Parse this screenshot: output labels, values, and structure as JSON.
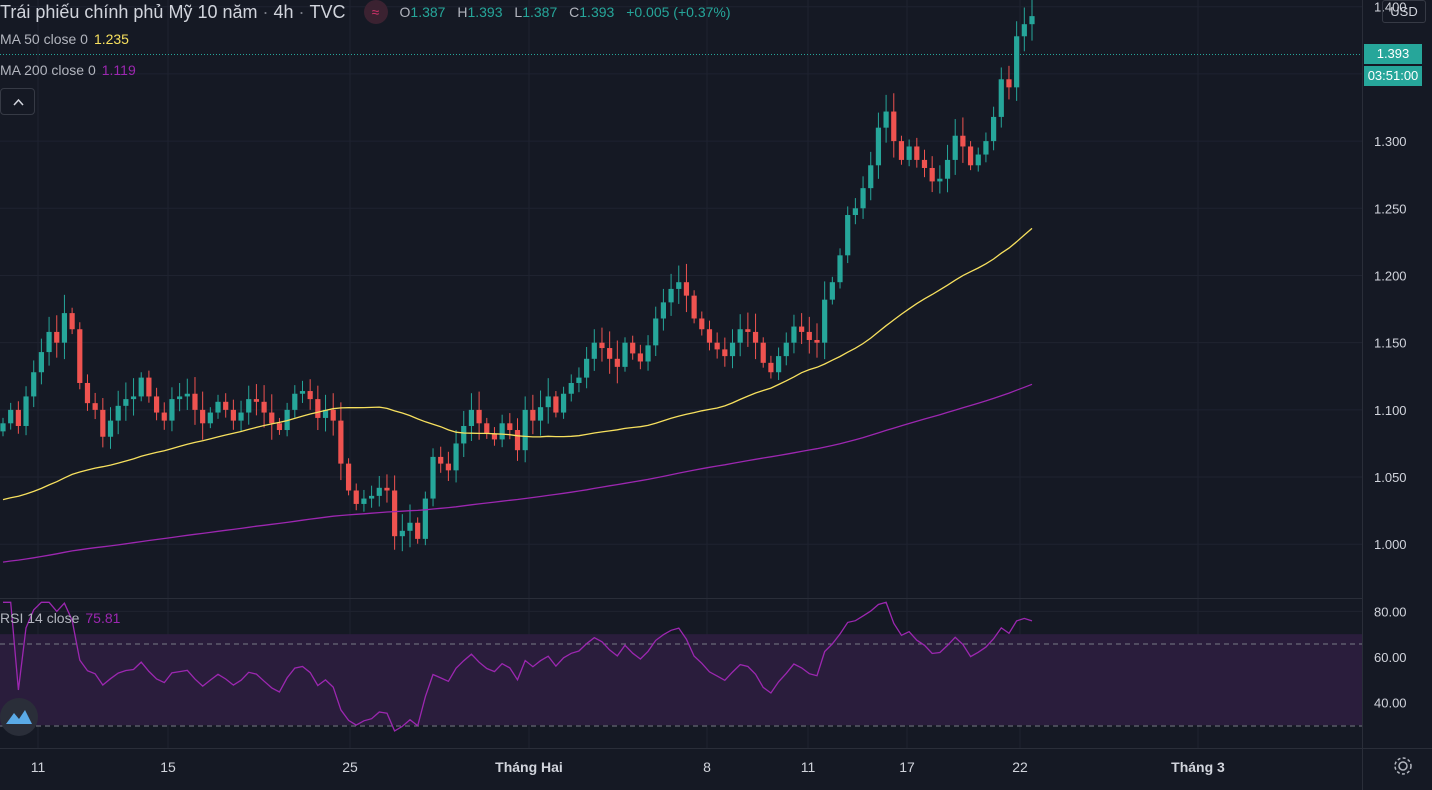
{
  "header": {
    "title": "Trái phiếu chính phủ Mỹ 10 năm",
    "interval": "4h",
    "source": "TVC",
    "source_icon": "wave-icon",
    "ohlc": {
      "o_key": "O",
      "o": "1.387",
      "h_key": "H",
      "h": "1.393",
      "l_key": "L",
      "l": "1.387",
      "c_key": "C",
      "c": "1.393",
      "change": "+0.005 (+0.37%)"
    },
    "currency_button": "USD"
  },
  "indicators": {
    "ma50": {
      "label": "MA 50 close 0",
      "value": "1.235",
      "color": "#f7e05e"
    },
    "ma200": {
      "label": "MA 200 close 0",
      "value": "1.119",
      "color": "#9c27b0"
    },
    "rsi": {
      "label": "RSI 14 close",
      "value": "75.81",
      "color": "#9c27b0"
    }
  },
  "price_badges": {
    "last_price": "1.393",
    "countdown": "03:51:00"
  },
  "colors": {
    "background": "#151924",
    "grid": "#1f2330",
    "up": "#26a69a",
    "down": "#ef5350",
    "text": "#b2b5be",
    "rsi_band": "#2a1d3c"
  },
  "icons": {
    "collapse": "chevron-up-icon",
    "logo": "tradingview-logo-icon",
    "settings": "gear-icon"
  },
  "chart_data": [
    {
      "type": "candlestick",
      "title": "Trái phiếu chính phủ Mỹ 10 năm",
      "x_tick_labels": [
        "11",
        "15",
        "25",
        "Tháng Hai",
        "8",
        "11",
        "17",
        "22",
        "Tháng 3"
      ],
      "y_tick_labels": [
        "1.000",
        "1.050",
        "1.100",
        "1.150",
        "1.200",
        "1.250",
        "1.300",
        "1.350",
        "1.400"
      ],
      "ylim": [
        0.96,
        1.405
      ],
      "grid": true,
      "close_series": [
        1.09,
        1.1,
        1.088,
        1.11,
        1.128,
        1.143,
        1.158,
        1.15,
        1.172,
        1.16,
        1.12,
        1.105,
        1.1,
        1.08,
        1.092,
        1.103,
        1.108,
        1.11,
        1.124,
        1.11,
        1.098,
        1.092,
        1.108,
        1.11,
        1.112,
        1.1,
        1.09,
        1.098,
        1.106,
        1.1,
        1.092,
        1.098,
        1.108,
        1.106,
        1.098,
        1.09,
        1.085,
        1.1,
        1.112,
        1.114,
        1.108,
        1.094,
        1.1,
        1.092,
        1.06,
        1.04,
        1.03,
        1.034,
        1.036,
        1.042,
        1.04,
        1.006,
        1.01,
        1.016,
        1.004,
        1.034,
        1.065,
        1.06,
        1.055,
        1.075,
        1.088,
        1.1,
        1.09,
        1.082,
        1.078,
        1.09,
        1.085,
        1.07,
        1.1,
        1.092,
        1.102,
        1.11,
        1.098,
        1.112,
        1.12,
        1.124,
        1.138,
        1.15,
        1.146,
        1.138,
        1.132,
        1.15,
        1.142,
        1.136,
        1.148,
        1.168,
        1.18,
        1.19,
        1.195,
        1.185,
        1.168,
        1.16,
        1.15,
        1.145,
        1.14,
        1.15,
        1.16,
        1.158,
        1.15,
        1.135,
        1.128,
        1.14,
        1.15,
        1.162,
        1.158,
        1.152,
        1.15,
        1.182,
        1.195,
        1.215,
        1.245,
        1.25,
        1.265,
        1.282,
        1.31,
        1.322,
        1.3,
        1.286,
        1.296,
        1.286,
        1.28,
        1.27,
        1.272,
        1.286,
        1.304,
        1.296,
        1.282,
        1.29,
        1.3,
        1.318,
        1.346,
        1.34,
        1.378,
        1.387,
        1.393
      ],
      "ma50_last": 1.235,
      "ma200_last": 1.119
    },
    {
      "type": "line",
      "title": "RSI 14 close",
      "y_tick_labels": [
        "40.00",
        "60.00",
        "80.00"
      ],
      "ylim": [
        20,
        85
      ],
      "bands": [
        30,
        70
      ],
      "last_value": 75.81
    }
  ]
}
